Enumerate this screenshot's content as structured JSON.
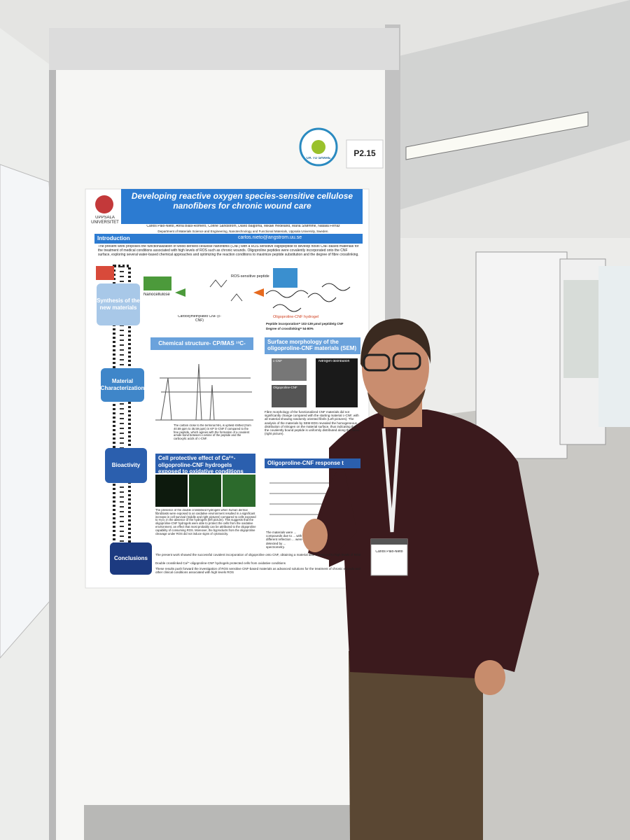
{
  "board_number": "P2.15",
  "share_badge": "OK TO SHARE",
  "poster": {
    "logo": "UPPSALA UNIVERSITET",
    "title": "Developing reactive oxygen species-sensitive cellulose nanofibers for chronic wound care",
    "authors": "Carlos Palo-Nieto, Anna Blasi-Romero, Corine Sandström, David Balgoma, Mikael Hedeland, Maria Strømme, Natalia Ferraz",
    "affiliation": "Department of Materials Science and Engineering, Nanotechnology and Functional Materials, Uppsala University, Sweden.",
    "email": "carlos.nieto@angstrom.uu.se",
    "introduction": {
      "heading": "Introduction",
      "text": "The present work proposes the functionalization of wood derived cellulose nanofibrils (CNF) with a ROS sensitive oligopeptide to develop novel CNF-based materials for the treatment of medical conditions associated with high levels of ROS such as chronic wounds. Oligoproline peptides were covalently incorporated onto the CNF surface, exploring several water-based chemical approaches and optimizing the reaction conditions to maximize peptide substitution and the degree of fibre crosslinking."
    },
    "stages": [
      "Synthesis of the new materials",
      "Material Characterization",
      "Bioactivity",
      "Conclusions"
    ],
    "synthesis": {
      "nanocellulose": "Nanocellulose",
      "cnf": "Carboxymethylated CNF (c-CNF)",
      "peptide": "ROS-sensitive peptide",
      "hydrogel": "Oligoproline-CNF hydrogel",
      "facts": [
        "Peptide incorporation= 102-139 µmol peptide/g CNF",
        "Degree of crosslinking= 54-80%"
      ]
    },
    "nmr": {
      "heading": "Chemical structure- CP/MAS ¹³C-NMR",
      "text": "The carbon close to the terminal NH₂ is upfield shifted (from 40.59 ppm to 35.59 ppm) in KP in-CNF if compared to the free peptide, which agrees with the formation of a covalent amide bond between ε-amine of the peptide and the carboxylic acids of c-CNF."
    },
    "sem": {
      "heading": "Surface morphology of the oligoproline-CNF materials (SEM)",
      "labels": [
        "c-CNF",
        "Oligoproline-CNF",
        "Nitrogen distribution"
      ],
      "text": "Fibre morphology of the functionalized CNF materials did not significantly change compared with the starting material c-CNF, with all material showing randomly oriented fibrils (Left pictures). The analysis of the materials by SEM-EDS revealed the homogeneous distribution of nitrogen on the material surface, thus indicating that the covalently bound peptide is uniformly distributed along the fibres (right picture)."
    },
    "cell": {
      "heading": "Cell protective effect of Ca²⁺-oligoproline-CNF hydrogels exposed to oxidative conditions",
      "text": "The presence of the double crosslinked hydrogels when human dermal fibroblasts were exposed to an oxidative environment resulted in a significant increase in cell survival (middle and right pictures) compared to cells exposed to H₂O₂ in the absence of the hydrogels (left picture). This suggests that the oligoproline-CNF hydrogels were able to protect the cells from the oxidative environment, an effect that most probably can be attributed to the oligoproline capability of consuming ROS. Moreover, the byproducts from the oligoproline cleavage under ROS did not induce signs of cytotoxicity."
    },
    "response": {
      "heading": "Oligoproline-CNF response t",
      "text": "The materials were ... compounds due to ... with different reflection ... were detected by ... spectrometry."
    },
    "conclusions": [
      "The present work showed the successful covalent incorporation of oligoproline onto CNF, obtaining a material able to respond to high levels of ROS",
      "Double crosslinked Ca²⁺-oligoproline-CNF hydrogels protected cells from oxidative conditions",
      "These results push forward the investigation of ROS sensitive CNF-based materials as advanced solutions for the treatment of chronic wounds and other clinical conditions associated with high levels ROS"
    ]
  },
  "name_tag": "Carlos Palo-Nieto"
}
